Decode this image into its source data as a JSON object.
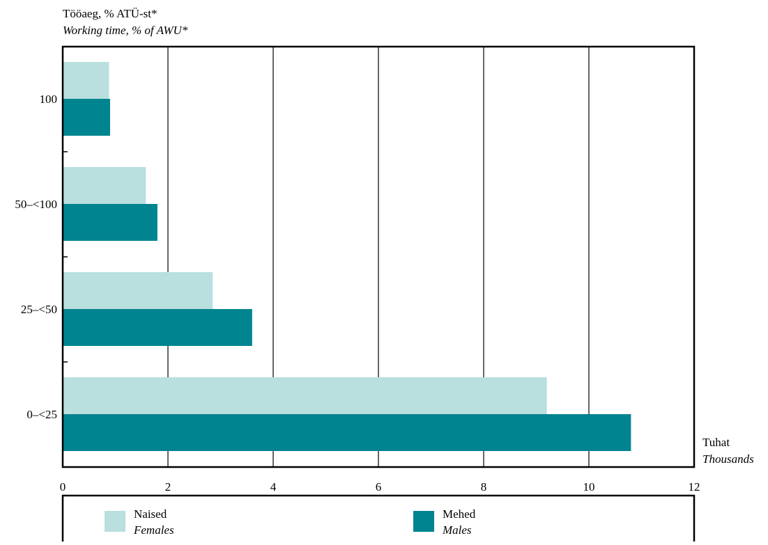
{
  "chart_data": {
    "type": "bar",
    "orientation": "horizontal",
    "y_title": "Tööaeg, % ATÜ-st*",
    "y_title_en": "Working time, % of AWU*",
    "x_unit": "Tuhat",
    "x_unit_en": "Thousands",
    "categories": [
      "100",
      "50–<100",
      "25–<50",
      "0–<25"
    ],
    "series": [
      {
        "name": "Naised",
        "name_en": "Females",
        "color": "#b9dfdf",
        "values": [
          0.88,
          1.58,
          2.85,
          9.2
        ]
      },
      {
        "name": "Mehed",
        "name_en": "Males",
        "color": "#008490",
        "values": [
          0.9,
          1.8,
          3.6,
          10.8
        ]
      }
    ],
    "xlim": [
      0,
      12
    ],
    "x_ticks": [
      "0",
      "2",
      "4",
      "6",
      "8",
      "10",
      "12"
    ],
    "grid": true,
    "legend_position": "bottom"
  }
}
